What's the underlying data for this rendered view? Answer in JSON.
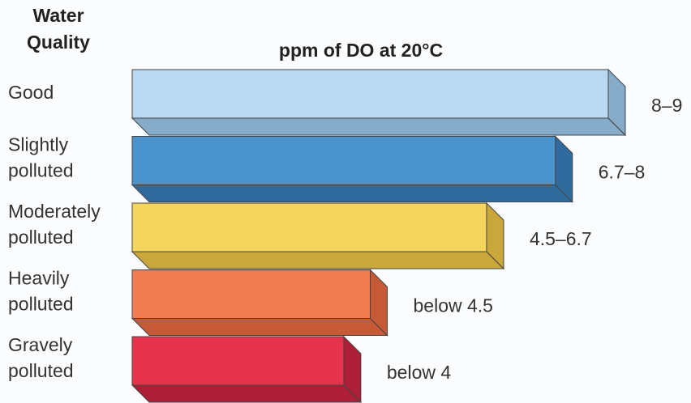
{
  "chart_data": {
    "type": "bar3d",
    "title": "ppm of DO at 20°C",
    "category_title": "Water Quality",
    "categories": [
      "Good",
      "Slightly polluted",
      "Moderately polluted",
      "Heavily polluted",
      "Gravely polluted"
    ],
    "values": [
      9,
      8,
      6.7,
      4.5,
      4
    ],
    "value_labels": [
      "8–9",
      "6.7–8",
      "4.5–6.7",
      "below 4.5",
      "below 4"
    ],
    "colors": [
      "#b9d9f2",
      "#4b93cc",
      "#f4d65e",
      "#f27d52",
      "#e8334d"
    ],
    "side_colors": [
      "#86acc9",
      "#2f6b9c",
      "#c9a73a",
      "#c65a37",
      "#ad1f36"
    ]
  }
}
